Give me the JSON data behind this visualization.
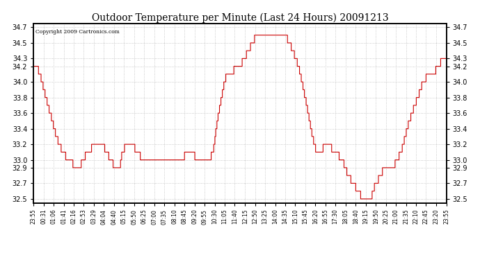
{
  "title": "Outdoor Temperature per Minute (Last 24 Hours) 20091213",
  "copyright_text": "Copyright 2009 Cartronics.com",
  "line_color": "#cc0000",
  "background_color": "#ffffff",
  "grid_color": "#bbbbbb",
  "ylim": [
    32.45,
    34.75
  ],
  "yticks": [
    32.5,
    32.7,
    32.9,
    33.0,
    33.2,
    33.4,
    33.6,
    33.8,
    34.0,
    34.2,
    34.3,
    34.5,
    34.7
  ],
  "xtick_labels": [
    "23:55",
    "00:31",
    "01:06",
    "01:41",
    "02:16",
    "02:53",
    "03:29",
    "04:04",
    "04:40",
    "05:15",
    "05:50",
    "06:25",
    "07:00",
    "07:35",
    "08:10",
    "08:45",
    "09:20",
    "09:55",
    "10:30",
    "11:05",
    "11:40",
    "12:15",
    "12:50",
    "13:25",
    "14:00",
    "14:35",
    "15:10",
    "15:45",
    "16:20",
    "16:55",
    "17:30",
    "18:05",
    "18:40",
    "19:15",
    "19:50",
    "20:25",
    "21:00",
    "21:35",
    "22:10",
    "22:45",
    "23:20",
    "23:55"
  ],
  "control_points": [
    [
      0.0,
      34.2
    ],
    [
      0.008,
      34.2
    ],
    [
      0.015,
      34.1
    ],
    [
      0.025,
      33.9
    ],
    [
      0.04,
      33.6
    ],
    [
      0.055,
      33.3
    ],
    [
      0.07,
      33.1
    ],
    [
      0.085,
      33.0
    ],
    [
      0.095,
      32.95
    ],
    [
      0.105,
      32.9
    ],
    [
      0.115,
      32.95
    ],
    [
      0.13,
      33.1
    ],
    [
      0.14,
      33.15
    ],
    [
      0.15,
      33.2
    ],
    [
      0.165,
      33.2
    ],
    [
      0.172,
      33.15
    ],
    [
      0.178,
      33.1
    ],
    [
      0.185,
      33.0
    ],
    [
      0.192,
      32.95
    ],
    [
      0.2,
      32.9
    ],
    [
      0.21,
      32.95
    ],
    [
      0.215,
      33.1
    ],
    [
      0.22,
      33.15
    ],
    [
      0.23,
      33.2
    ],
    [
      0.24,
      33.2
    ],
    [
      0.245,
      33.15
    ],
    [
      0.25,
      33.1
    ],
    [
      0.258,
      33.05
    ],
    [
      0.265,
      33.0
    ],
    [
      0.275,
      33.0
    ],
    [
      0.29,
      33.0
    ],
    [
      0.3,
      33.0
    ],
    [
      0.31,
      33.0
    ],
    [
      0.32,
      33.0
    ],
    [
      0.335,
      33.0
    ],
    [
      0.345,
      33.0
    ],
    [
      0.358,
      33.0
    ],
    [
      0.365,
      33.05
    ],
    [
      0.372,
      33.1
    ],
    [
      0.378,
      33.15
    ],
    [
      0.385,
      33.1
    ],
    [
      0.39,
      33.05
    ],
    [
      0.395,
      33.0
    ],
    [
      0.405,
      33.0
    ],
    [
      0.415,
      33.0
    ],
    [
      0.425,
      33.0
    ],
    [
      0.435,
      33.1
    ],
    [
      0.445,
      33.5
    ],
    [
      0.455,
      33.8
    ],
    [
      0.462,
      34.0
    ],
    [
      0.468,
      34.1
    ],
    [
      0.475,
      34.15
    ],
    [
      0.48,
      34.1
    ],
    [
      0.485,
      34.15
    ],
    [
      0.49,
      34.2
    ],
    [
      0.495,
      34.2
    ],
    [
      0.5,
      34.2
    ],
    [
      0.505,
      34.25
    ],
    [
      0.51,
      34.3
    ],
    [
      0.515,
      34.35
    ],
    [
      0.52,
      34.4
    ],
    [
      0.525,
      34.45
    ],
    [
      0.53,
      34.5
    ],
    [
      0.535,
      34.55
    ],
    [
      0.54,
      34.6
    ],
    [
      0.545,
      34.65
    ],
    [
      0.55,
      34.65
    ],
    [
      0.555,
      34.6
    ],
    [
      0.56,
      34.55
    ],
    [
      0.565,
      34.6
    ],
    [
      0.57,
      34.65
    ],
    [
      0.575,
      34.6
    ],
    [
      0.58,
      34.55
    ],
    [
      0.585,
      34.6
    ],
    [
      0.59,
      34.6
    ],
    [
      0.595,
      34.6
    ],
    [
      0.6,
      34.6
    ],
    [
      0.605,
      34.6
    ],
    [
      0.61,
      34.6
    ],
    [
      0.615,
      34.55
    ],
    [
      0.62,
      34.5
    ],
    [
      0.628,
      34.4
    ],
    [
      0.635,
      34.3
    ],
    [
      0.642,
      34.2
    ],
    [
      0.65,
      34.0
    ],
    [
      0.658,
      33.8
    ],
    [
      0.665,
      33.6
    ],
    [
      0.672,
      33.4
    ],
    [
      0.68,
      33.2
    ],
    [
      0.686,
      33.1
    ],
    [
      0.692,
      33.1
    ],
    [
      0.698,
      33.1
    ],
    [
      0.704,
      33.2
    ],
    [
      0.71,
      33.25
    ],
    [
      0.716,
      33.2
    ],
    [
      0.722,
      33.15
    ],
    [
      0.728,
      33.1
    ],
    [
      0.734,
      33.1
    ],
    [
      0.74,
      33.05
    ],
    [
      0.748,
      33.0
    ],
    [
      0.755,
      32.9
    ],
    [
      0.762,
      32.8
    ],
    [
      0.768,
      32.75
    ],
    [
      0.774,
      32.7
    ],
    [
      0.78,
      32.65
    ],
    [
      0.786,
      32.6
    ],
    [
      0.792,
      32.55
    ],
    [
      0.798,
      32.52
    ],
    [
      0.808,
      32.52
    ],
    [
      0.815,
      32.52
    ],
    [
      0.82,
      32.55
    ],
    [
      0.825,
      32.65
    ],
    [
      0.83,
      32.7
    ],
    [
      0.835,
      32.75
    ],
    [
      0.84,
      32.8
    ],
    [
      0.845,
      32.85
    ],
    [
      0.85,
      32.9
    ],
    [
      0.86,
      32.9
    ],
    [
      0.87,
      32.9
    ],
    [
      0.88,
      33.0
    ],
    [
      0.89,
      33.1
    ],
    [
      0.9,
      33.3
    ],
    [
      0.91,
      33.5
    ],
    [
      0.92,
      33.65
    ],
    [
      0.93,
      33.8
    ],
    [
      0.94,
      33.95
    ],
    [
      0.95,
      34.05
    ],
    [
      0.96,
      34.1
    ],
    [
      0.968,
      34.1
    ],
    [
      0.974,
      34.15
    ],
    [
      0.98,
      34.2
    ],
    [
      0.986,
      34.25
    ],
    [
      0.992,
      34.3
    ],
    [
      1.0,
      34.3
    ]
  ]
}
